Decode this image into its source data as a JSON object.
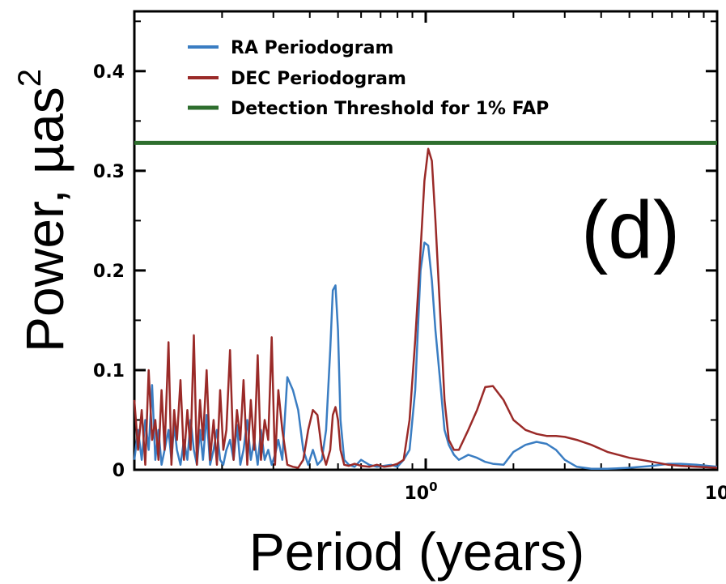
{
  "chart_data": {
    "type": "line",
    "panel_label": "(d)",
    "xlabel": "Period (years)",
    "ylabel": "Power, µas",
    "ylabel_superscript": "2",
    "x_scale": "log",
    "xlim": [
      0.1,
      10
    ],
    "ylim": [
      0,
      0.46
    ],
    "x_ticks": [
      {
        "value": 1,
        "label": "10",
        "sup": "0"
      },
      {
        "value": 10,
        "label": "10",
        "sup": ""
      }
    ],
    "y_ticks": [
      {
        "value": 0,
        "label": "0"
      },
      {
        "value": 0.1,
        "label": "0.1"
      },
      {
        "value": 0.2,
        "label": "0.2"
      },
      {
        "value": 0.3,
        "label": "0.3"
      },
      {
        "value": 0.4,
        "label": "0.4"
      }
    ],
    "legend_position": "top-left",
    "series": [
      {
        "name": "RA Periodogram",
        "color": "#3a7dc2",
        "x": [
          0.1,
          0.103,
          0.106,
          0.109,
          0.112,
          0.115,
          0.118,
          0.121,
          0.124,
          0.127,
          0.131,
          0.134,
          0.137,
          0.14,
          0.144,
          0.148,
          0.152,
          0.156,
          0.16,
          0.164,
          0.168,
          0.172,
          0.177,
          0.182,
          0.187,
          0.192,
          0.197,
          0.202,
          0.207,
          0.213,
          0.219,
          0.225,
          0.231,
          0.237,
          0.244,
          0.251,
          0.258,
          0.265,
          0.272,
          0.28,
          0.288,
          0.296,
          0.304,
          0.312,
          0.322,
          0.335,
          0.35,
          0.365,
          0.38,
          0.395,
          0.41,
          0.425,
          0.44,
          0.455,
          0.47,
          0.48,
          0.49,
          0.5,
          0.51,
          0.525,
          0.545,
          0.57,
          0.6,
          0.64,
          0.68,
          0.72,
          0.76,
          0.8,
          0.84,
          0.88,
          0.92,
          0.96,
          0.99,
          1.02,
          1.05,
          1.08,
          1.12,
          1.16,
          1.2,
          1.25,
          1.3,
          1.4,
          1.5,
          1.6,
          1.7,
          1.85,
          2.0,
          2.2,
          2.4,
          2.6,
          2.8,
          3.0,
          3.3,
          3.7,
          4.2,
          5.0,
          6.0,
          6.8,
          7.5,
          8.5,
          10.0
        ],
        "values": [
          0.01,
          0.04,
          0.01,
          0.05,
          0.02,
          0.085,
          0.01,
          0.04,
          0.005,
          0.02,
          0.04,
          0.01,
          0.045,
          0.02,
          0.005,
          0.03,
          0.01,
          0.05,
          0.02,
          0.005,
          0.04,
          0.01,
          0.055,
          0.005,
          0.02,
          0.04,
          0.01,
          0.005,
          0.02,
          0.03,
          0.01,
          0.045,
          0.005,
          0.02,
          0.05,
          0.01,
          0.03,
          0.005,
          0.04,
          0.01,
          0.02,
          0.005,
          0.015,
          0.03,
          0.01,
          0.093,
          0.08,
          0.06,
          0.02,
          0.005,
          0.02,
          0.005,
          0.01,
          0.04,
          0.12,
          0.18,
          0.185,
          0.14,
          0.05,
          0.01,
          0.005,
          0.003,
          0.01,
          0.005,
          0.003,
          0.004,
          0.005,
          0.003,
          0.01,
          0.02,
          0.08,
          0.2,
          0.228,
          0.225,
          0.19,
          0.14,
          0.09,
          0.04,
          0.025,
          0.015,
          0.01,
          0.015,
          0.012,
          0.008,
          0.006,
          0.005,
          0.018,
          0.025,
          0.028,
          0.026,
          0.02,
          0.01,
          0.003,
          0.001,
          0.001,
          0.002,
          0.004,
          0.006,
          0.006,
          0.005,
          0.003
        ]
      },
      {
        "name": "DEC Periodogram",
        "color": "#9a2a28",
        "x": [
          0.1,
          0.103,
          0.106,
          0.109,
          0.112,
          0.115,
          0.118,
          0.121,
          0.124,
          0.127,
          0.131,
          0.134,
          0.137,
          0.14,
          0.144,
          0.148,
          0.152,
          0.156,
          0.16,
          0.164,
          0.168,
          0.172,
          0.177,
          0.182,
          0.187,
          0.192,
          0.197,
          0.202,
          0.207,
          0.213,
          0.219,
          0.225,
          0.231,
          0.237,
          0.244,
          0.251,
          0.258,
          0.265,
          0.272,
          0.28,
          0.288,
          0.296,
          0.304,
          0.312,
          0.322,
          0.335,
          0.35,
          0.365,
          0.38,
          0.395,
          0.41,
          0.425,
          0.44,
          0.455,
          0.47,
          0.48,
          0.49,
          0.5,
          0.51,
          0.525,
          0.545,
          0.57,
          0.6,
          0.64,
          0.68,
          0.72,
          0.76,
          0.8,
          0.84,
          0.88,
          0.92,
          0.96,
          0.99,
          1.02,
          1.05,
          1.08,
          1.12,
          1.16,
          1.2,
          1.25,
          1.3,
          1.4,
          1.5,
          1.6,
          1.7,
          1.85,
          2.0,
          2.2,
          2.4,
          2.6,
          2.8,
          3.0,
          3.3,
          3.7,
          4.2,
          5.0,
          6.0,
          6.8,
          7.5,
          8.5,
          10.0
        ],
        "values": [
          0.07,
          0.02,
          0.06,
          0.005,
          0.1,
          0.03,
          0.05,
          0.01,
          0.08,
          0.02,
          0.128,
          0.005,
          0.06,
          0.03,
          0.09,
          0.01,
          0.06,
          0.02,
          0.135,
          0.005,
          0.07,
          0.03,
          0.1,
          0.01,
          0.05,
          0.005,
          0.08,
          0.02,
          0.04,
          0.12,
          0.01,
          0.06,
          0.03,
          0.09,
          0.005,
          0.07,
          0.02,
          0.115,
          0.01,
          0.05,
          0.03,
          0.133,
          0.005,
          0.08,
          0.04,
          0.005,
          0.003,
          0.002,
          0.01,
          0.04,
          0.06,
          0.055,
          0.02,
          0.005,
          0.02,
          0.055,
          0.063,
          0.05,
          0.02,
          0.005,
          0.004,
          0.006,
          0.004,
          0.003,
          0.005,
          0.003,
          0.004,
          0.006,
          0.01,
          0.05,
          0.13,
          0.22,
          0.29,
          0.322,
          0.31,
          0.25,
          0.16,
          0.07,
          0.03,
          0.02,
          0.02,
          0.04,
          0.06,
          0.083,
          0.084,
          0.07,
          0.05,
          0.04,
          0.036,
          0.034,
          0.034,
          0.033,
          0.03,
          0.025,
          0.018,
          0.012,
          0.008,
          0.005,
          0.004,
          0.003,
          0.002
        ]
      },
      {
        "name": "Detection Threshold for 1% FAP",
        "color": "#2e6e2e",
        "x": [
          0.1,
          10
        ],
        "values": [
          0.328,
          0.328
        ]
      }
    ]
  }
}
